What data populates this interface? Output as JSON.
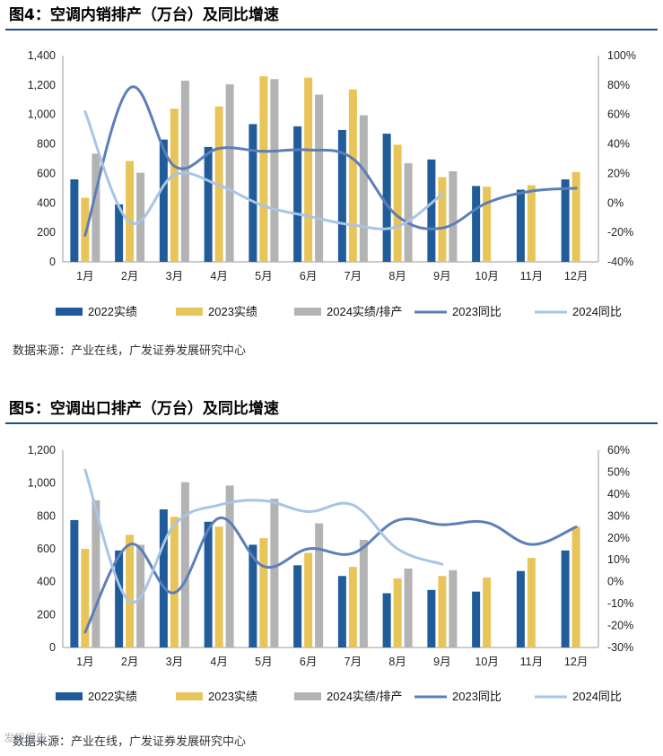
{
  "charts": [
    {
      "title": "图4：空调内销排产（万台）及同比增速",
      "source": "数据来源：产业在线，广发证券发展研究中心",
      "chart_data": {
        "type": "bar",
        "categories": [
          "1月",
          "2月",
          "3月",
          "4月",
          "5月",
          "6月",
          "7月",
          "8月",
          "9月",
          "10月",
          "11月",
          "12月"
        ],
        "series": [
          {
            "name": "2022实绩",
            "kind": "bar",
            "axis": "left",
            "color": "#1f5c99",
            "values": [
              560,
              390,
              830,
              780,
              935,
              920,
              895,
              870,
              695,
              515,
              490,
              560
            ]
          },
          {
            "name": "2023实绩",
            "kind": "bar",
            "axis": "left",
            "color": "#e8c55a",
            "values": [
              435,
              685,
              1040,
              1055,
              1260,
              1250,
              1170,
              795,
              575,
              510,
              520,
              610
            ]
          },
          {
            "name": "2024实绩/排产",
            "kind": "bar",
            "axis": "left",
            "color": "#b3b3b3",
            "values": [
              735,
              605,
              1230,
              1205,
              1240,
              1135,
              995,
              670,
              615,
              null,
              null,
              null
            ]
          },
          {
            "name": "2023同比",
            "kind": "line",
            "axis": "right",
            "color": "#5b7fb9",
            "values": [
              -22,
              78,
              25,
              37,
              35,
              36,
              30,
              -9,
              -17,
              0,
              8,
              10
            ]
          },
          {
            "name": "2024同比",
            "kind": "line",
            "axis": "right",
            "color": "#a9c4e4",
            "values": [
              62,
              -13,
              19,
              12,
              -2,
              -9,
              -15,
              -16,
              6,
              null,
              null,
              null
            ]
          }
        ],
        "y_left": {
          "min": 0,
          "max": 1400,
          "step": 200,
          "ticks": [
            "0",
            "200",
            "400",
            "600",
            "800",
            "1,000",
            "1,200",
            "1,400"
          ]
        },
        "y_right": {
          "min": -40,
          "max": 100,
          "step": 20,
          "ticks": [
            "-40%",
            "-20%",
            "0%",
            "20%",
            "40%",
            "60%",
            "80%",
            "100%"
          ]
        },
        "legend": "bottom"
      }
    },
    {
      "title": "图5：空调出口排产（万台）及同比增速",
      "source": "数据来源：产业在线，广发证券发展研究中心",
      "chart_data": {
        "type": "bar",
        "categories": [
          "1月",
          "2月",
          "3月",
          "4月",
          "5月",
          "6月",
          "7月",
          "8月",
          "9月",
          "10月",
          "11月",
          "12月"
        ],
        "series": [
          {
            "name": "2022实绩",
            "kind": "bar",
            "axis": "left",
            "color": "#1f5c99",
            "values": [
              775,
              590,
              840,
              765,
              625,
              500,
              435,
              330,
              350,
              340,
              465,
              590
            ]
          },
          {
            "name": "2023实绩",
            "kind": "bar",
            "axis": "left",
            "color": "#e8c55a",
            "values": [
              600,
              685,
              795,
              735,
              665,
              575,
              490,
              420,
              435,
              425,
              545,
              735
            ]
          },
          {
            "name": "2024实绩/排产",
            "kind": "bar",
            "axis": "left",
            "color": "#b3b3b3",
            "values": [
              895,
              625,
              1005,
              985,
              905,
              755,
              655,
              480,
              470,
              null,
              null,
              null
            ]
          },
          {
            "name": "2023同比",
            "kind": "line",
            "axis": "right",
            "color": "#5b7fb9",
            "values": [
              -23,
              17,
              -5,
              29,
              7,
              15,
              13,
              28,
              26,
              27,
              17,
              25
            ]
          },
          {
            "name": "2024同比",
            "kind": "line",
            "axis": "right",
            "color": "#a9c4e4",
            "values": [
              51,
              -9,
              26,
              35,
              37,
              32,
              35,
              15,
              8,
              null,
              null,
              null
            ]
          }
        ],
        "y_left": {
          "min": 0,
          "max": 1200,
          "step": 200,
          "ticks": [
            "0",
            "200",
            "400",
            "600",
            "800",
            "1,000",
            "1,200"
          ]
        },
        "y_right": {
          "min": -30,
          "max": 60,
          "step": 10,
          "ticks": [
            "-30%",
            "-20%",
            "-10%",
            "0%",
            "10%",
            "20%",
            "30%",
            "40%",
            "50%",
            "60%"
          ]
        },
        "legend": "bottom"
      }
    }
  ],
  "watermark": "发现报告"
}
